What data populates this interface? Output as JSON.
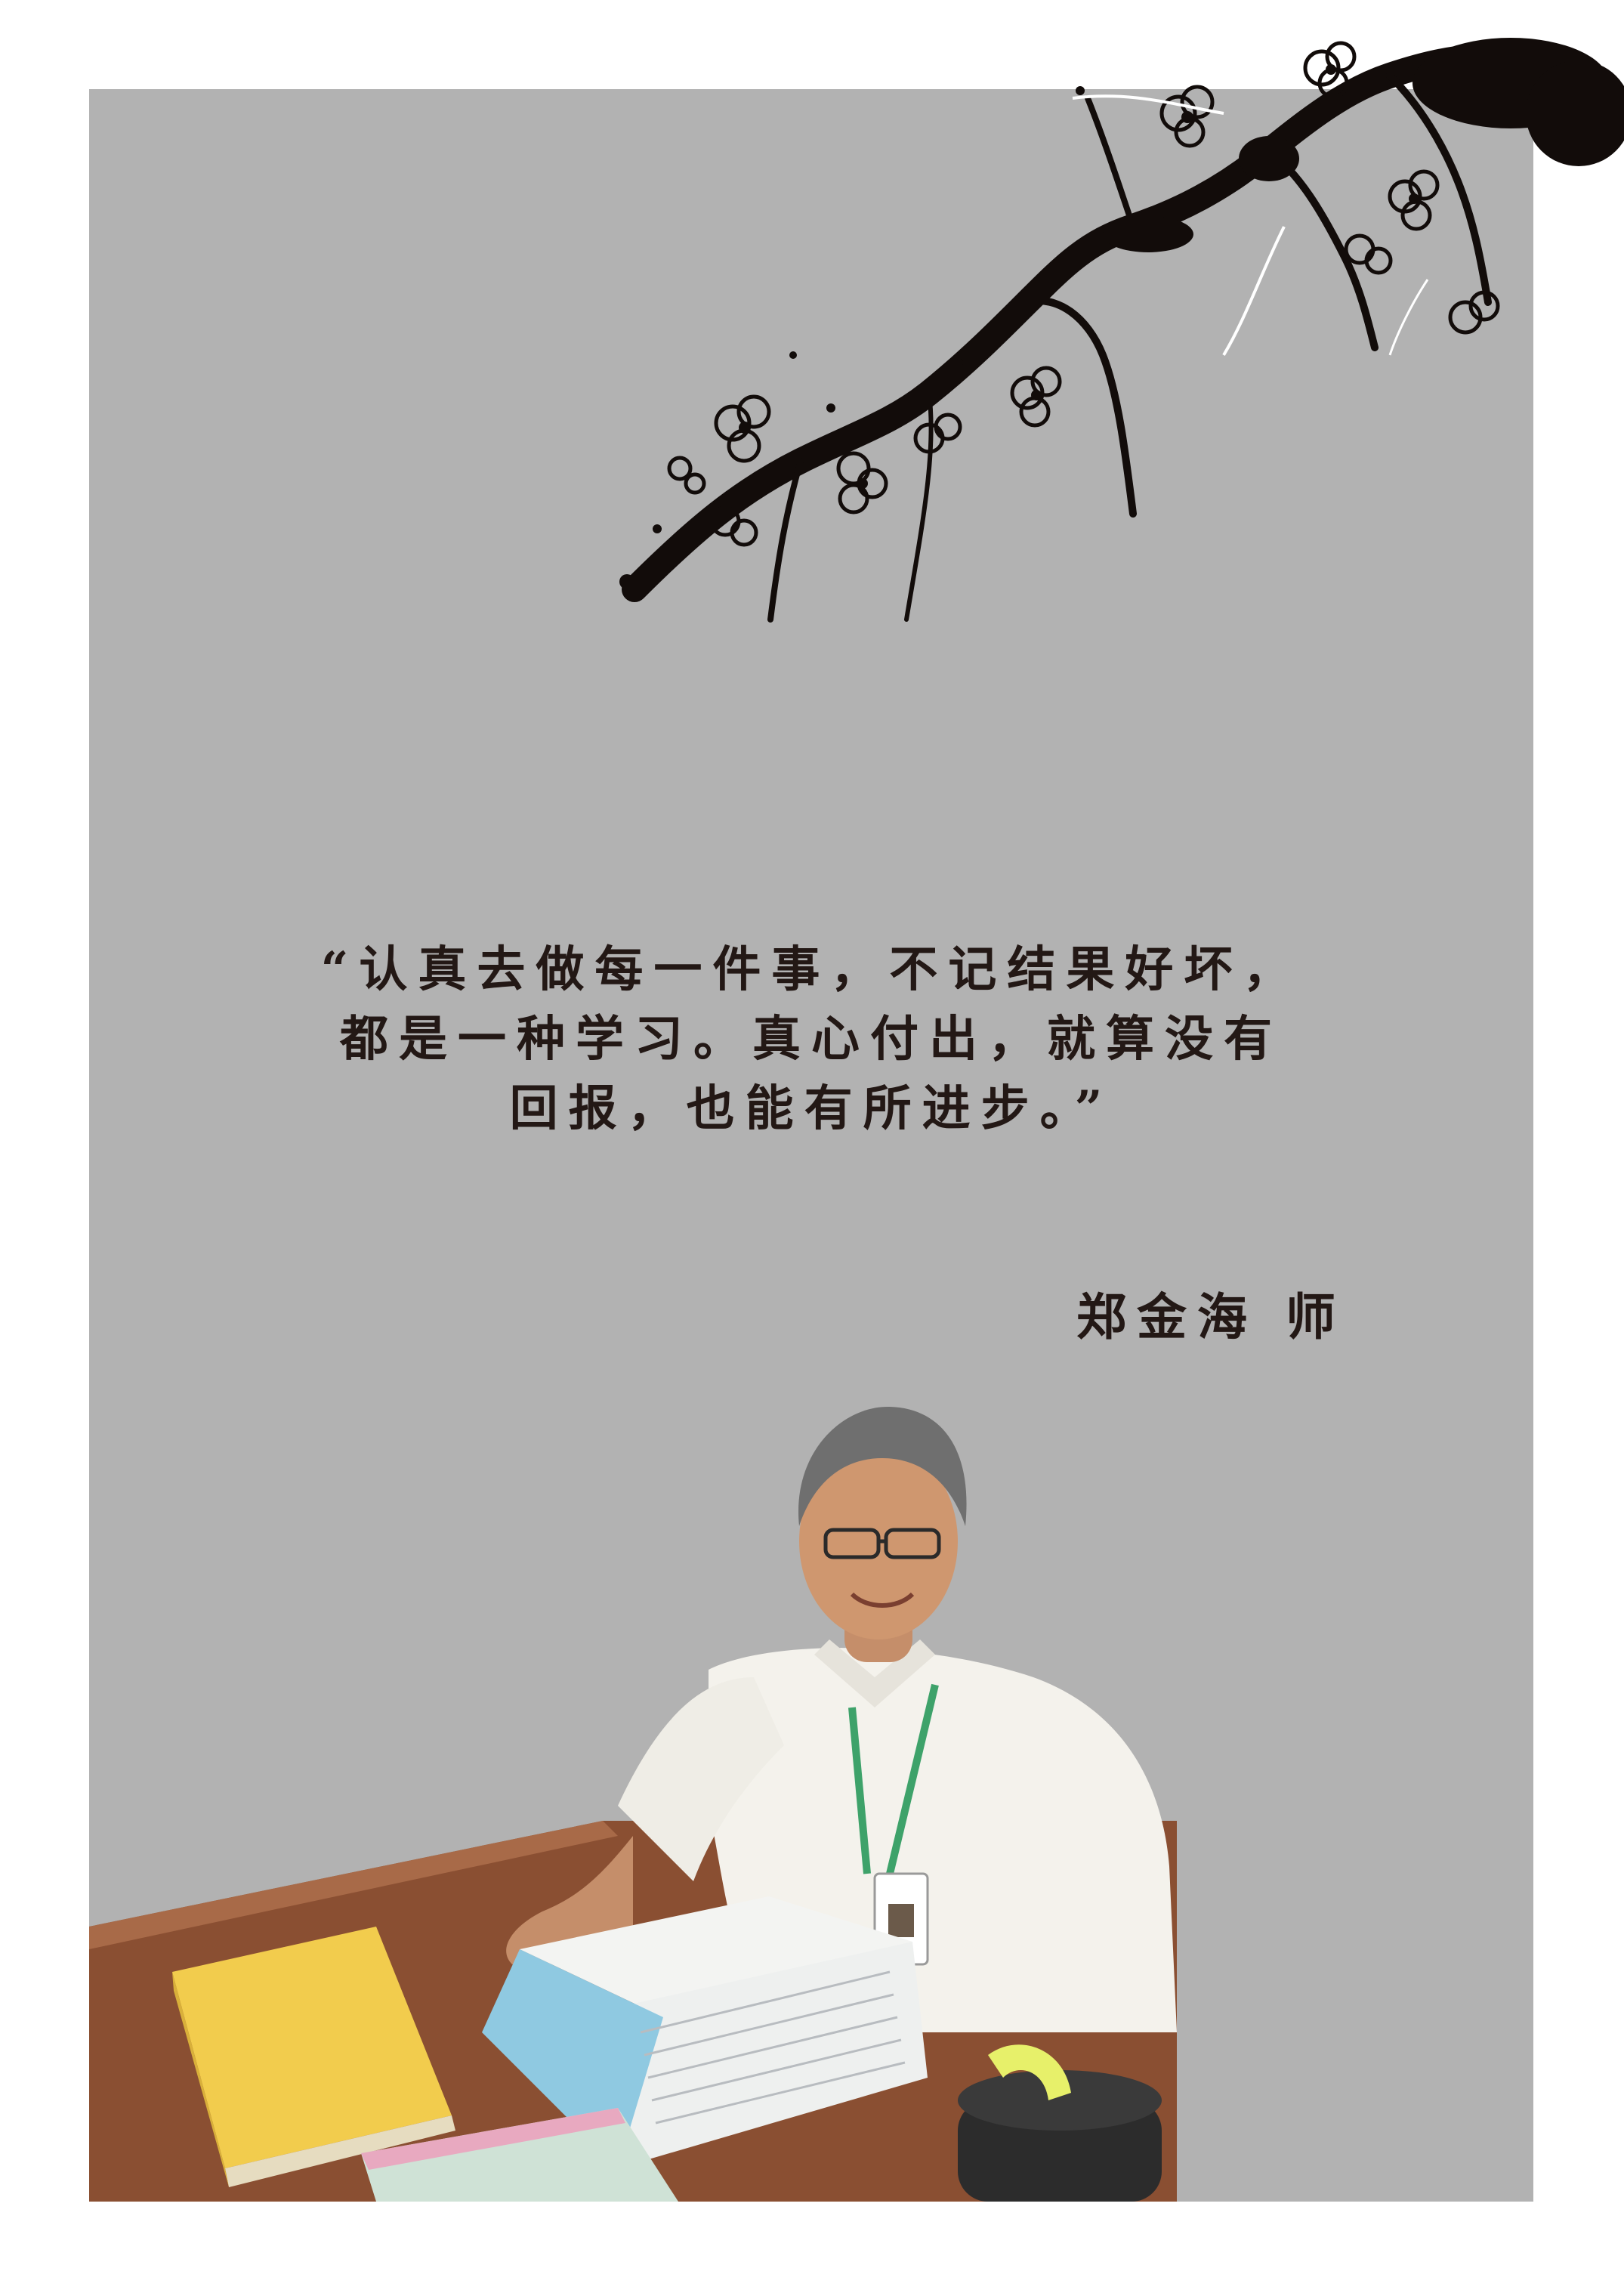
{
  "quote": {
    "line1": "“认真去做每一件事，不记结果好坏，",
    "line2": "都是一种学习。真心付出，就算没有",
    "line3": "回报，也能有所进步。”"
  },
  "author": "郑金海 师",
  "colors": {
    "page_background": "#ffffff",
    "panel": "#b2b2b2",
    "ink": "#231815"
  },
  "illustrations": {
    "branch": "plum-blossom-branch-illustration",
    "photo": "teacher-seated-at-desk-photo"
  }
}
